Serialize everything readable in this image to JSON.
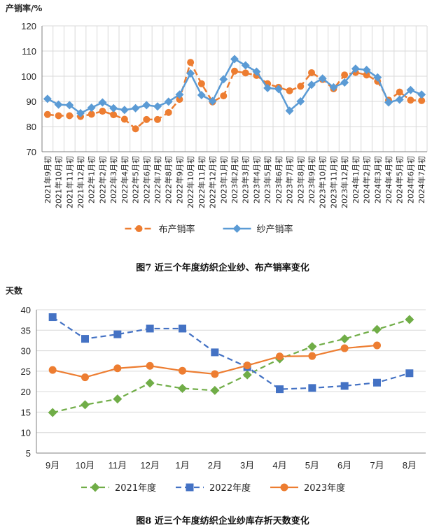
{
  "chart_data": [
    {
      "type": "line",
      "ylabel": "产销率/%",
      "ylim": [
        70,
        120
      ],
      "yticks": [
        70,
        80,
        90,
        100,
        110,
        120
      ],
      "grid": true,
      "legend_position": "bottom",
      "categories": [
        "2021年9月初",
        "2021年10月初",
        "2021年11月初",
        "2021年12月初",
        "2022年1月初",
        "2022年2月初",
        "2022年3月初",
        "2022年4月初",
        "2022年5月初",
        "2022年6月初",
        "2022年7月初",
        "2022年8月初",
        "2022年9月初",
        "2022年10月初",
        "2022年11月初",
        "2022年12月初",
        "2023年1月初",
        "2023年2月初",
        "2023年3月初",
        "2023年4月初",
        "2023年5月初",
        "2023年6月初",
        "2023年7月初",
        "2023年8月初",
        "2023年9月初",
        "2023年10月初",
        "2023年11月初",
        "2023年12月初",
        "2024年1月初",
        "2024年2月初",
        "2024年3月初",
        "2024年4月初",
        "2024年5月初",
        "2024年6月初",
        "2024年7月初"
      ],
      "series": [
        {
          "name": "布产销率",
          "color": "#ED7D31",
          "marker": "circle",
          "dashed": true,
          "values": [
            84.8,
            84.3,
            84.3,
            84.0,
            84.9,
            86.1,
            84.7,
            82.9,
            79.1,
            82.8,
            82.8,
            85.6,
            90.8,
            105.5,
            97.0,
            89.8,
            92.2,
            102.0,
            101.3,
            100.3,
            97.0,
            95.6,
            94.2,
            96.0,
            101.4,
            98.7,
            95.0,
            100.5,
            101.5,
            100.5,
            98.0,
            90.5,
            93.7,
            90.5,
            90.3
          ]
        },
        {
          "name": "纱产销率",
          "color": "#5B9BD5",
          "marker": "diamond",
          "dashed": false,
          "values": [
            91.0,
            88.7,
            88.5,
            85.3,
            87.5,
            89.6,
            87.3,
            86.6,
            87.3,
            88.5,
            88.0,
            89.9,
            92.7,
            101.1,
            92.5,
            90.1,
            98.8,
            106.8,
            104.3,
            101.8,
            95.3,
            94.9,
            86.3,
            90.0,
            96.6,
            99.1,
            95.6,
            97.5,
            103.0,
            102.5,
            99.5,
            89.6,
            90.7,
            94.5,
            92.7
          ]
        }
      ],
      "caption": "图7   近三个年度纺织企业纱、布产销率变化"
    },
    {
      "type": "line",
      "ylabel": "天数",
      "ylim": [
        5,
        40
      ],
      "yticks": [
        5,
        10,
        15,
        20,
        25,
        30,
        35,
        40
      ],
      "grid": true,
      "legend_position": "bottom",
      "categories": [
        "9月",
        "10月",
        "11月",
        "12月",
        "1月",
        "2月",
        "3月",
        "4月",
        "5月",
        "6月",
        "7月",
        "8月"
      ],
      "series": [
        {
          "name": "2021年度",
          "color": "#70AD47",
          "marker": "diamond",
          "dashed": true,
          "values": [
            14.9,
            16.8,
            18.2,
            22.1,
            20.8,
            20.3,
            24.1,
            28.0,
            31.0,
            32.9,
            35.2,
            37.6
          ]
        },
        {
          "name": "2022年度",
          "color": "#4472C4",
          "marker": "square",
          "dashed": true,
          "values": [
            38.2,
            32.9,
            34.0,
            35.4,
            35.4,
            29.6,
            26.0,
            20.6,
            20.9,
            21.4,
            22.2,
            24.5
          ]
        },
        {
          "name": "2023年度",
          "color": "#ED7D31",
          "marker": "circle",
          "dashed": false,
          "values": [
            25.3,
            23.5,
            25.7,
            26.3,
            25.1,
            24.3,
            26.4,
            28.6,
            28.7,
            30.6,
            31.3,
            null
          ]
        }
      ],
      "caption": "图8   近三个年度纺织企业纱库存折天数变化"
    }
  ]
}
